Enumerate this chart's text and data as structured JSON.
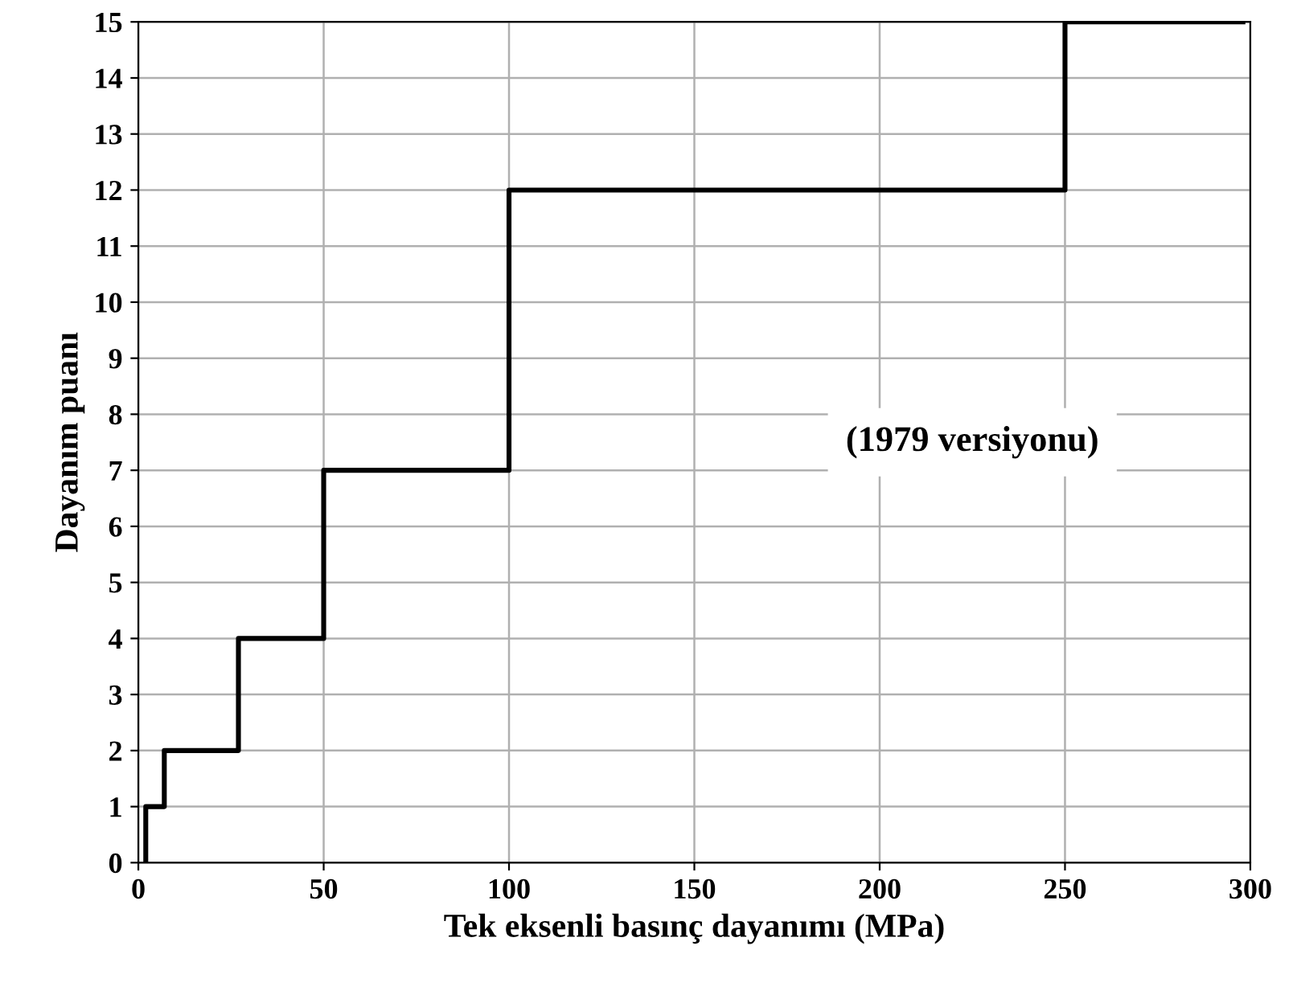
{
  "chart_data": {
    "type": "step",
    "xlabel": "Tek eksenli basınç dayanımı (MPa)",
    "ylabel": "Dayanım puanı",
    "x": [
      2,
      2,
      7,
      27,
      50,
      100,
      250,
      298
    ],
    "series": [
      {
        "color": "#000000",
        "values": [
          0,
          1,
          2,
          4,
          7,
          12,
          15,
          15
        ]
      }
    ],
    "xlim": [
      0,
      300
    ],
    "xticks": [
      0,
      50,
      100,
      150,
      200,
      250,
      300
    ],
    "ylim": [
      0,
      15
    ],
    "yticks": [
      0,
      1,
      2,
      3,
      4,
      5,
      6,
      7,
      8,
      9,
      10,
      11,
      12,
      13,
      14,
      15
    ],
    "grid": true,
    "annotations": [
      "(1979 versiyonu)"
    ]
  }
}
